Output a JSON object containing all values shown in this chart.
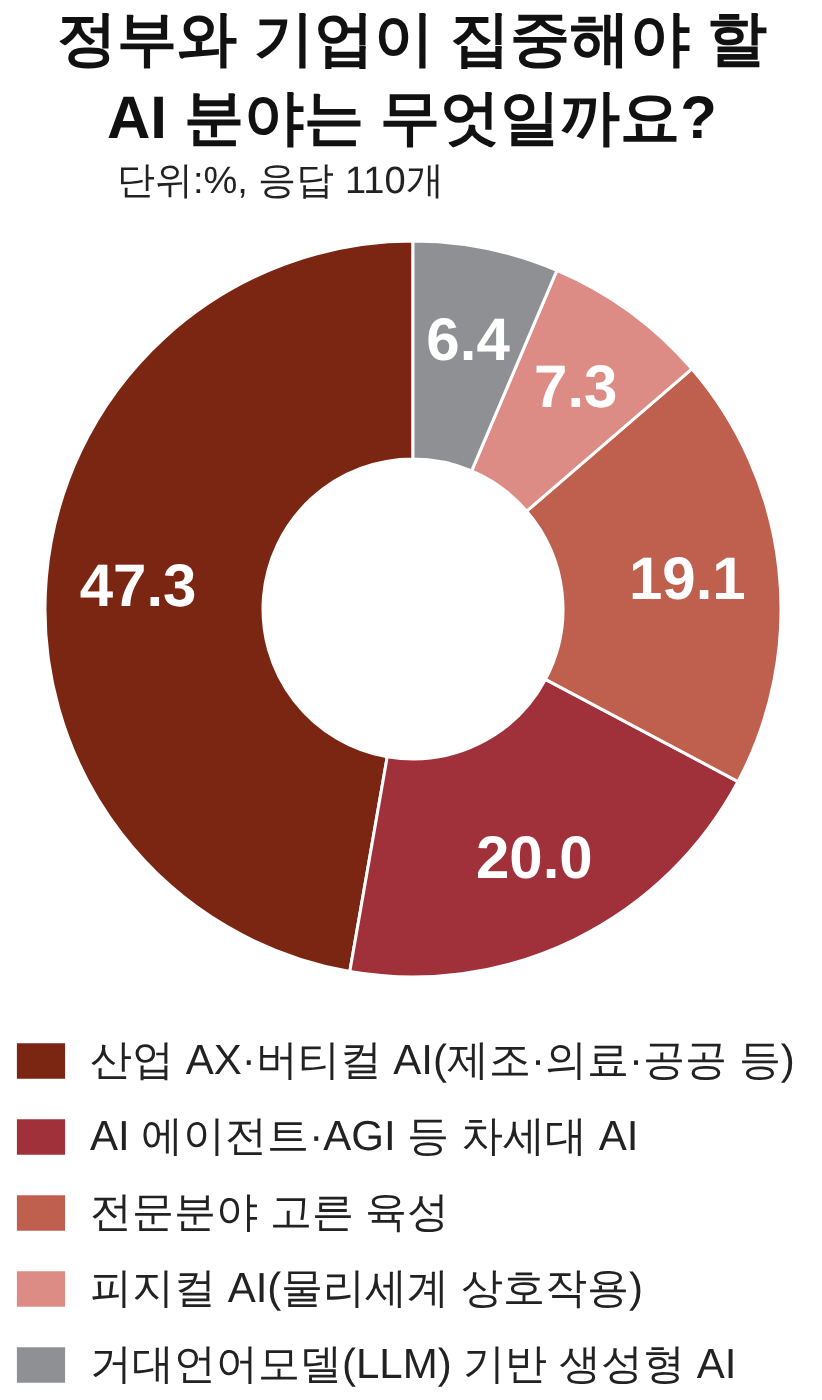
{
  "chart_data": {
    "type": "donut",
    "title": "정부와 기업이 집중해야 할\nAI 분야는 무엇일까요?",
    "subtitle": "단위:%, 응답 110개",
    "categories": [
      "산업 AX·버티컬 AI(제조·의료·공공 등)",
      "AI 에이전트·AGI 등 차세대 AI",
      "전문분야 고른 육성",
      "피지컬 AI(물리세계 상호작용)",
      "거대언어모델(LLM) 기반 생성형 AI"
    ],
    "values": [
      47.3,
      20.0,
      19.1,
      7.3,
      6.4
    ],
    "value_labels": [
      "47.3",
      "20.0",
      "19.1",
      "7.3",
      "6.4"
    ],
    "colors": [
      "#7b2612",
      "#a0303a",
      "#bf5f4e",
      "#dc8c84",
      "#8e9094"
    ],
    "legend": "bottom"
  }
}
